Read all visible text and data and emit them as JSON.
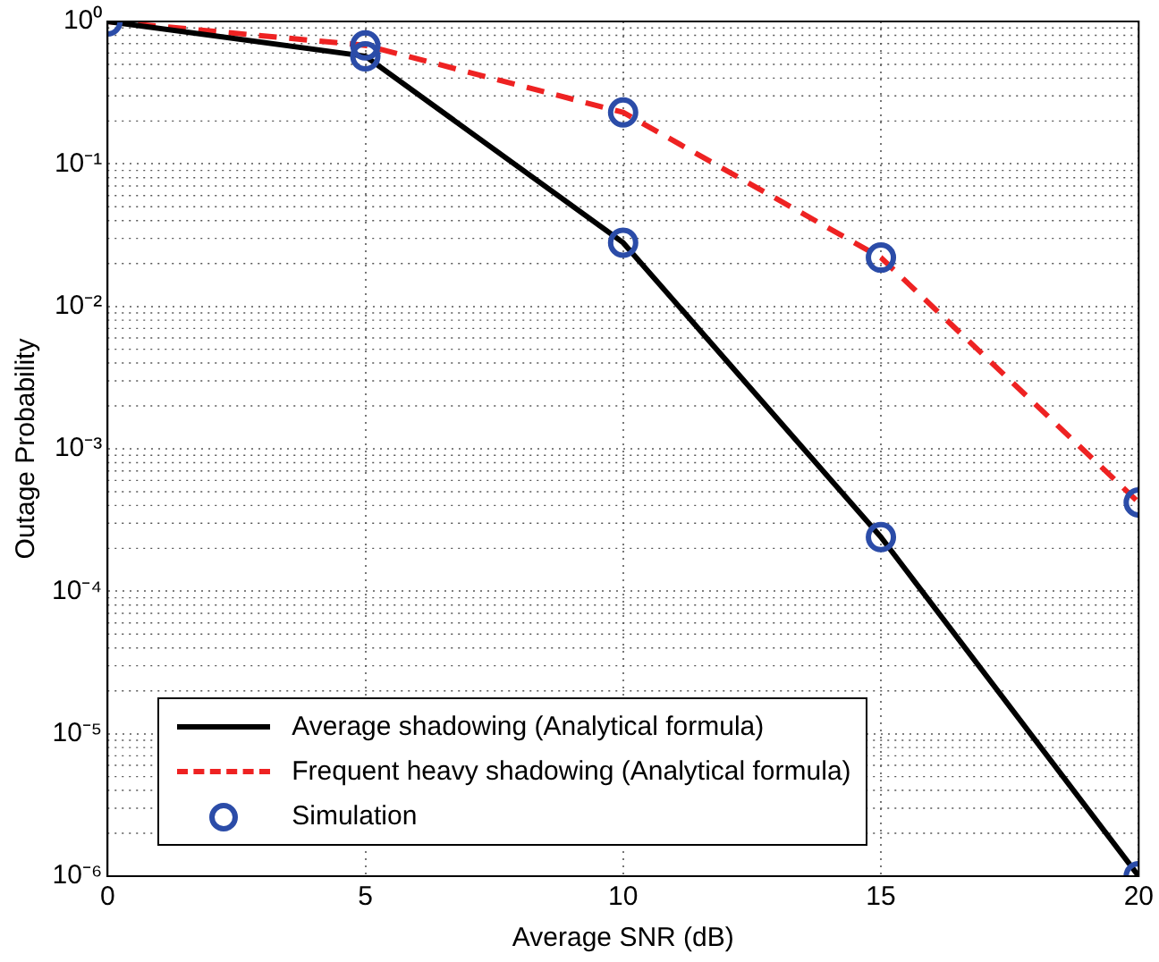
{
  "chart_data": {
    "type": "line",
    "xlabel": "Average SNR (dB)",
    "ylabel": "Outage Probability",
    "log": "y",
    "grid": true,
    "legend": "bottom left",
    "xlim": [
      0,
      20
    ],
    "xticks": [
      0,
      5,
      10,
      15,
      20
    ],
    "ylim": [
      1e-06,
      1
    ],
    "yticks": [
      {
        "value": 1e-06,
        "label": "10⁻⁶"
      },
      {
        "value": 1e-05,
        "label": "10⁻⁵"
      },
      {
        "value": 0.0001,
        "label": "10⁻⁴"
      },
      {
        "value": 0.001,
        "label": "10⁻³"
      },
      {
        "value": 0.01,
        "label": "10⁻²"
      },
      {
        "value": 0.1,
        "label": "10⁻¹"
      },
      {
        "value": 1,
        "label": "10⁰"
      }
    ],
    "series": [
      {
        "name": "Average shadowing (Analytical formula)",
        "color": "#000000",
        "line_style": "solid",
        "marker": "none",
        "x": [
          0,
          5,
          10,
          15,
          20
        ],
        "values": [
          1,
          0.57,
          0.028,
          0.00024,
          1e-06
        ]
      },
      {
        "name": "Frequent heavy shadowing (Analytical formula)",
        "color": "#ee2222",
        "line_style": "dashed",
        "marker": "none",
        "x": [
          0,
          5,
          10,
          15,
          20
        ],
        "values": [
          1,
          0.68,
          0.23,
          0.022,
          0.00042
        ]
      },
      {
        "name": "Simulation",
        "type": "scatter",
        "color": "#2b4ca8",
        "marker": "circle",
        "x": [
          0,
          5,
          5,
          10,
          10,
          15,
          15,
          20,
          20
        ],
        "values": [
          1,
          0.57,
          0.68,
          0.028,
          0.23,
          0.00024,
          0.022,
          1e-06,
          0.00042
        ]
      }
    ]
  }
}
